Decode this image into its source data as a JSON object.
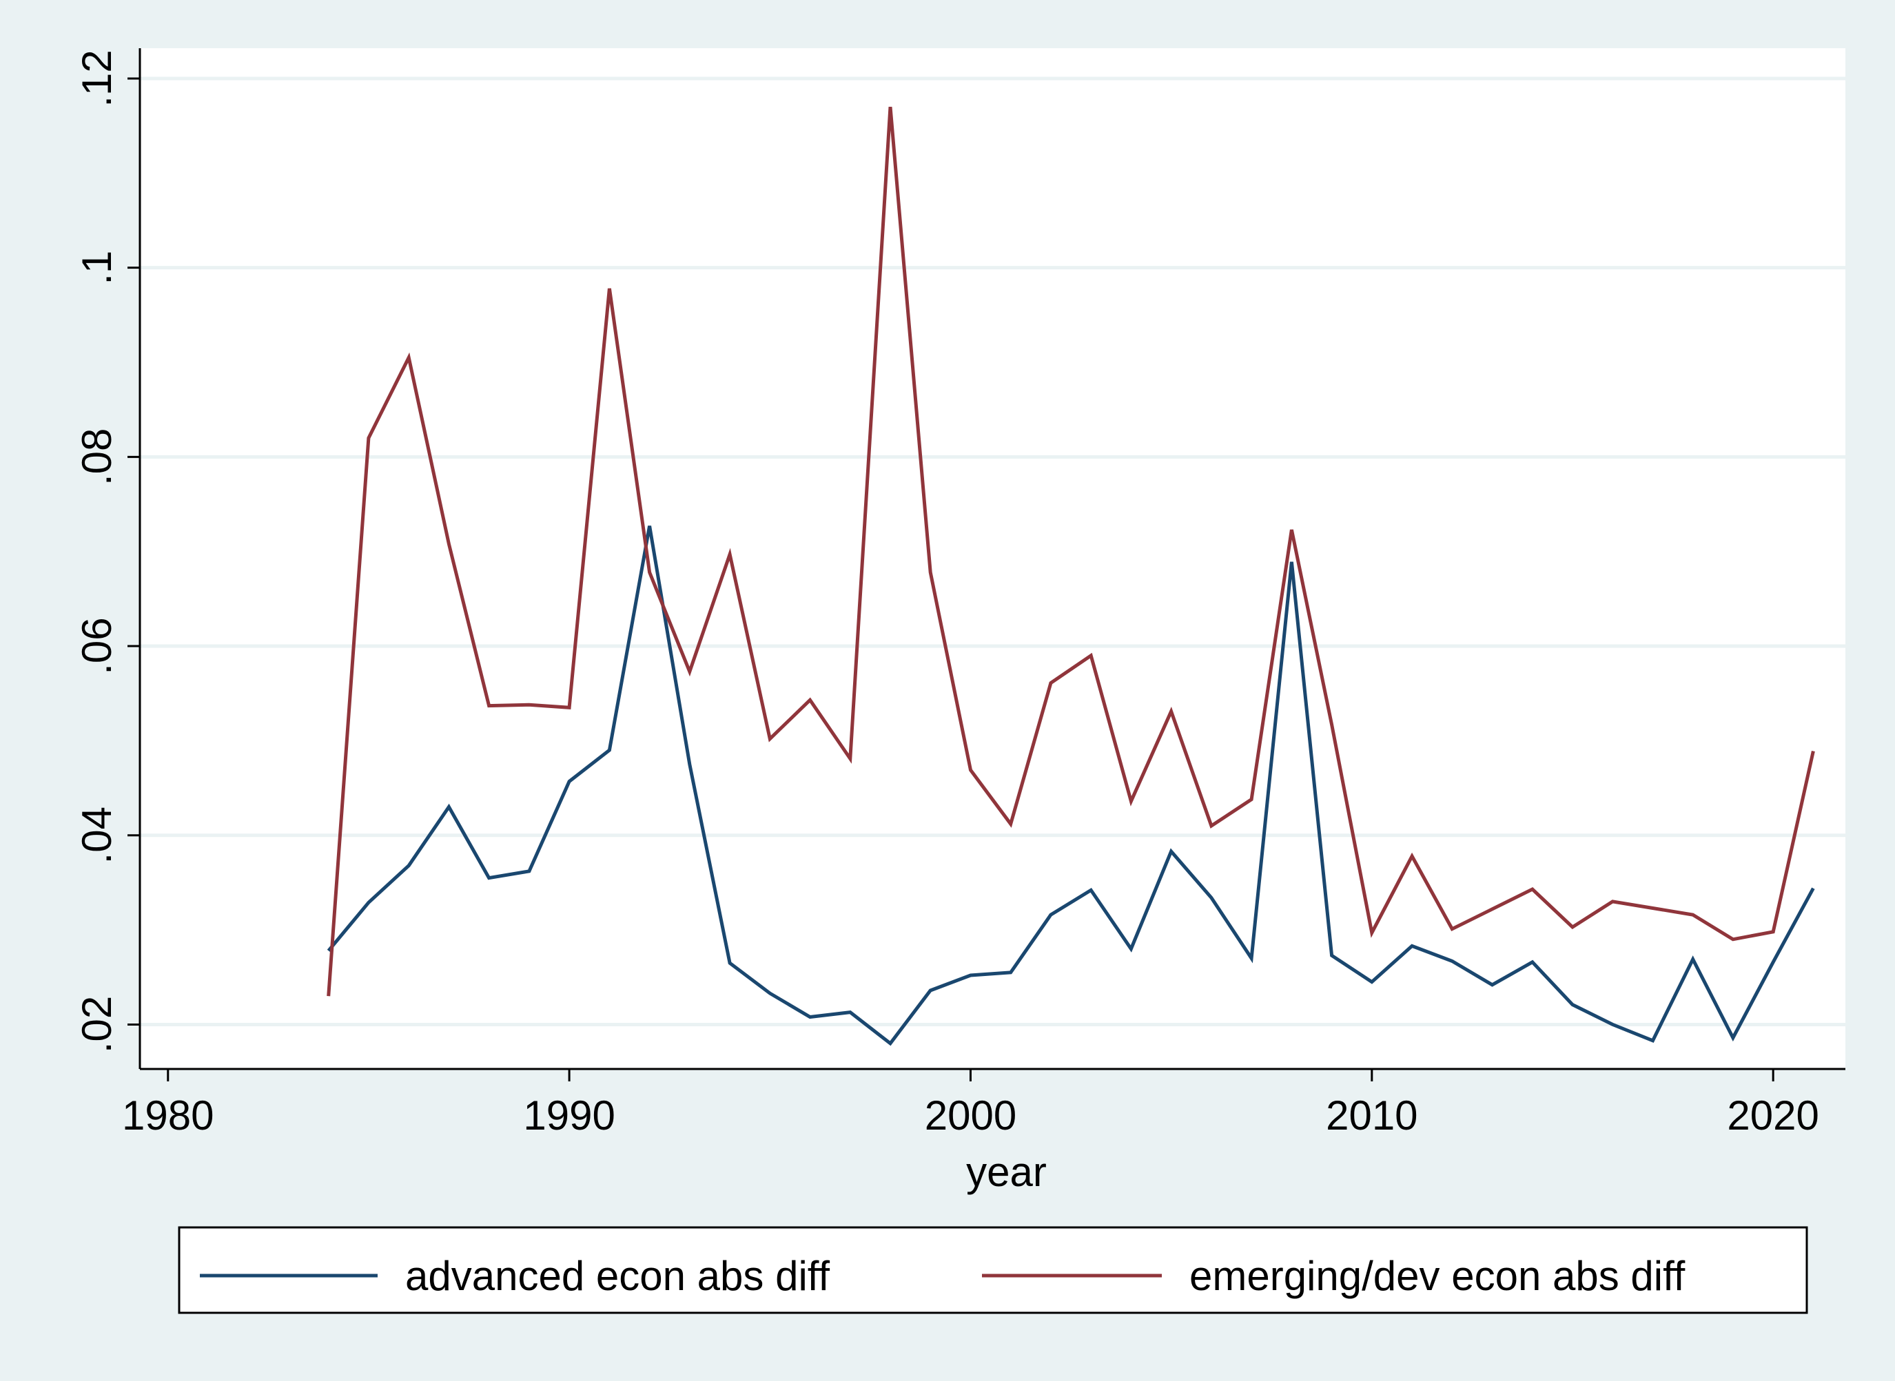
{
  "chart_data": {
    "type": "line",
    "title": "",
    "xlabel": "year",
    "ylabel": "",
    "xlim": [
      1979.3,
      2021.8
    ],
    "ylim": [
      0.0153,
      0.1232
    ],
    "x_ticks": [
      1980,
      1990,
      2000,
      2010,
      2020
    ],
    "x_tick_labels": [
      "1980",
      "1990",
      "2000",
      "2010",
      "2020"
    ],
    "y_ticks": [
      0.02,
      0.04,
      0.06,
      0.08,
      0.1,
      0.12
    ],
    "y_tick_labels": [
      ".02",
      ".04",
      ".06",
      ".08",
      ".1",
      ".12"
    ],
    "grid": "horizontal",
    "legend_position": "bottom",
    "x": [
      1984,
      1985,
      1986,
      1987,
      1988,
      1989,
      1990,
      1991,
      1992,
      1993,
      1994,
      1995,
      1996,
      1997,
      1998,
      1999,
      2000,
      2001,
      2002,
      2003,
      2004,
      2005,
      2006,
      2007,
      2008,
      2009,
      2010,
      2011,
      2012,
      2013,
      2014,
      2015,
      2016,
      2017,
      2018,
      2019,
      2020,
      2021
    ],
    "series": [
      {
        "name": "advanced econ abs diff",
        "color": "#1a476f",
        "values": [
          0.0278,
          0.0329,
          0.0368,
          0.043,
          0.0355,
          0.0362,
          0.0457,
          0.049,
          0.0727,
          0.0475,
          0.0265,
          0.0233,
          0.0208,
          0.0213,
          0.018,
          0.0236,
          0.0252,
          0.0255,
          0.0316,
          0.0342,
          0.028,
          0.0383,
          0.0334,
          0.027,
          0.0689,
          0.0273,
          0.0245,
          0.0283,
          0.0267,
          0.0242,
          0.0266,
          0.0221,
          0.02,
          0.0183,
          0.0269,
          0.0186,
          0.0266,
          0.0344
        ]
      },
      {
        "name": "emerging/dev econ abs diff",
        "color": "#90353b",
        "values": [
          0.023,
          0.082,
          0.0905,
          0.0708,
          0.0537,
          0.0538,
          0.0535,
          0.0978,
          0.0678,
          0.0573,
          0.0697,
          0.0502,
          0.0543,
          0.0481,
          0.117,
          0.0678,
          0.0469,
          0.0412,
          0.0561,
          0.059,
          0.0436,
          0.0531,
          0.041,
          0.0438,
          0.0723,
          0.0517,
          0.0297,
          0.0378,
          0.0301,
          0.0322,
          0.0343,
          0.0303,
          0.033,
          0.0323,
          0.0316,
          0.029,
          0.0298,
          0.0489
        ]
      }
    ]
  }
}
